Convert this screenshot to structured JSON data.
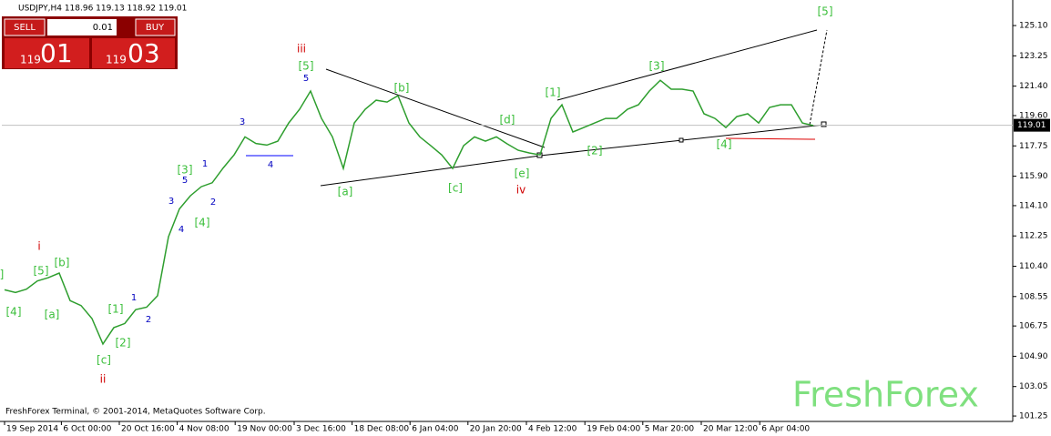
{
  "chart_data": {
    "type": "line",
    "header": "USDJPY,H4  118.96 119.13 118.92 119.01",
    "footer": "FreshForex Terminal, © 2001-2014, MetaQuotes Software Corp.",
    "watermark": "FreshForex",
    "panel": {
      "sell": "SELL",
      "lot": "0.01",
      "buy": "BUY",
      "bid_big": "119",
      "bid_small": "01",
      "ask_big": "119",
      "ask_small": "03"
    },
    "current_price": 119.01,
    "color": "#2e9e2e",
    "values": [
      108.96,
      108.8,
      109.0,
      109.5,
      109.7,
      109.98,
      108.3,
      108.0,
      107.2,
      105.65,
      106.65,
      106.9,
      107.75,
      107.9,
      108.6,
      112.2,
      113.9,
      114.7,
      115.26,
      115.5,
      116.4,
      117.2,
      118.3,
      117.9,
      117.8,
      118.04,
      119.15,
      119.99,
      121.1,
      119.43,
      118.3,
      116.37,
      119.15,
      119.99,
      120.54,
      120.43,
      120.82,
      119.15,
      118.3,
      117.76,
      117.2,
      116.37,
      117.76,
      118.3,
      118.04,
      118.3,
      117.87,
      117.48,
      117.32,
      117.2,
      119.43,
      120.26,
      118.6,
      118.87,
      119.15,
      119.43,
      119.43,
      119.99,
      120.26,
      121.1,
      121.76,
      121.21,
      121.21,
      121.1,
      119.71,
      119.43,
      118.87,
      119.54,
      119.71,
      119.15,
      120.1,
      120.26,
      120.26,
      119.15,
      118.99
    ],
    "xlim": [
      -0.25,
      92.25
    ],
    "xticks": [
      {
        "value": 0,
        "label": "19 Sep 2014"
      },
      {
        "value": 5.2,
        "label": "6 Oct 00:00"
      },
      {
        "value": 10.5,
        "label": "20 Oct 16:00"
      },
      {
        "value": 15.8,
        "label": "4 Nov 08:00"
      },
      {
        "value": 21.1,
        "label": "19 Nov 00:00"
      },
      {
        "value": 26.5,
        "label": "3 Dec 16:00"
      },
      {
        "value": 31.8,
        "label": "18 Dec 08:00"
      },
      {
        "value": 37.1,
        "label": "6 Jan 04:00"
      },
      {
        "value": 42.4,
        "label": "20 Jan 20:00"
      },
      {
        "value": 47.75,
        "label": "4 Feb 12:00"
      },
      {
        "value": 53.1,
        "label": "19 Feb 04:00"
      },
      {
        "value": 58.4,
        "label": "5 Mar 20:00"
      },
      {
        "value": 63.75,
        "label": "20 Mar 12:00"
      },
      {
        "value": 69.1,
        "label": "6 Apr 04:00"
      }
    ],
    "ylim": [
      100.92,
      126.55
    ],
    "yticks": [
      {
        "value": 125.1,
        "label": "125.10"
      },
      123.25,
      {
        "value": 121.4,
        "label": "121.40"
      },
      {
        "value": 119.6,
        "label": "119.60"
      },
      117.75,
      {
        "value": 115.9,
        "label": "115.90"
      },
      {
        "value": 114.1,
        "label": "114.10"
      },
      112.25,
      {
        "value": 110.4,
        "label": "110.40"
      },
      108.55,
      106.75,
      {
        "value": 104.9,
        "label": "104.90"
      },
      103.05,
      101.25
    ],
    "annotations": [
      "[5]",
      "[3]",
      "[1]",
      "[d]",
      "[2]",
      "[4]",
      "[e]",
      "[c]",
      "[a]",
      "[b]",
      "[5]",
      "[3]",
      "[4]",
      "[5]",
      "[b]",
      "[4]",
      "[a]",
      "[1]",
      "[2]",
      "[c]",
      "]",
      "iii",
      "iv",
      "i",
      "ii",
      "5",
      "3",
      "4",
      "1",
      "5",
      "3",
      "4",
      "2",
      "1",
      "2"
    ]
  }
}
